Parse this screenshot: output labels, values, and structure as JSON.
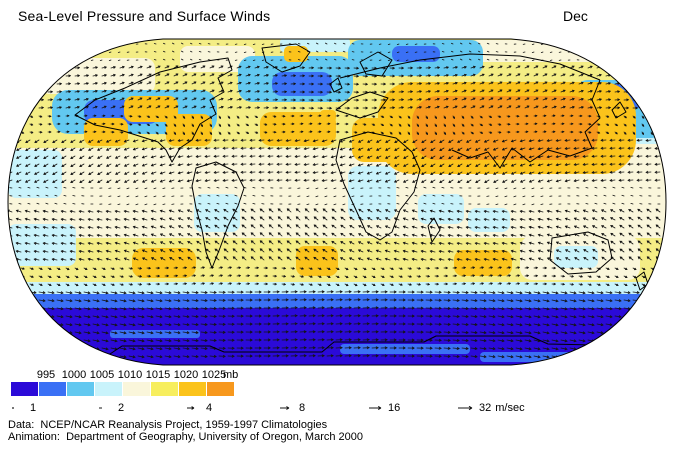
{
  "header": {
    "title": "Sea-Level Pressure and Surface Winds",
    "month": "Dec"
  },
  "colorbar": {
    "tick_labels": [
      "995",
      "1000",
      "1005",
      "1010",
      "1015",
      "1020",
      "1025"
    ],
    "unit": "mb",
    "colors": [
      "#2B0AD8",
      "#3A70F5",
      "#62C8F0",
      "#C9F3FB",
      "#FAF6DB",
      "#F7EE5E",
      "#FBC31B",
      "#F7981D"
    ]
  },
  "wind_scale": {
    "values": [
      "1",
      "2",
      "4",
      "8",
      "16",
      "32"
    ],
    "unit": "m/sec"
  },
  "credits": {
    "line1": "Data:  NCEP/NCAR Reanalysis Project, 1959-1997 Climatologies",
    "line2": "Animation:  Department of Geography, University of Oregon, March 2000"
  },
  "chart_data": {
    "type": "map",
    "title": "Sea-Level Pressure and Surface Winds",
    "month": "Dec",
    "projection": "Robinson-style global map, flat pole lines, curved sides",
    "variable": "sea-level pressure (mb) shading with surface wind vector field",
    "pressure_scale_mb": [
      995,
      1000,
      1005,
      1010,
      1015,
      1020,
      1025
    ],
    "scale_colors": [
      "#2B0AD8",
      "#3A70F5",
      "#62C8F0",
      "#C9F3FB",
      "#FAF6DB",
      "#F7EE5E",
      "#FBC31B",
      "#F7981D"
    ],
    "wind_speed_scale_msec": [
      1,
      2,
      4,
      8,
      16,
      32
    ],
    "features": [
      "Aleutian Low: blue region in North Pacific (left and far-right edges)",
      "Icelandic Low: blue region south/east of Greenland into Scandinavia",
      "Greenland High: small orange spot over Greenland",
      "Siberian High: large orange/deep-orange core over central Asia (~1025+ mb)",
      "Subtropical highs: orange patches in NE Pacific, Mexico, Azores/Bermuda, S Pacific, S Atlantic, S Indian Ocean",
      "Equatorial low band: cream with pale-cyan patches over Amazon, central Africa, Indonesia, N Australia",
      "Circumpolar Southern Ocean trough: dark indigo band (~995 mb) around Antarctica with strong eastward westerlies"
    ]
  }
}
